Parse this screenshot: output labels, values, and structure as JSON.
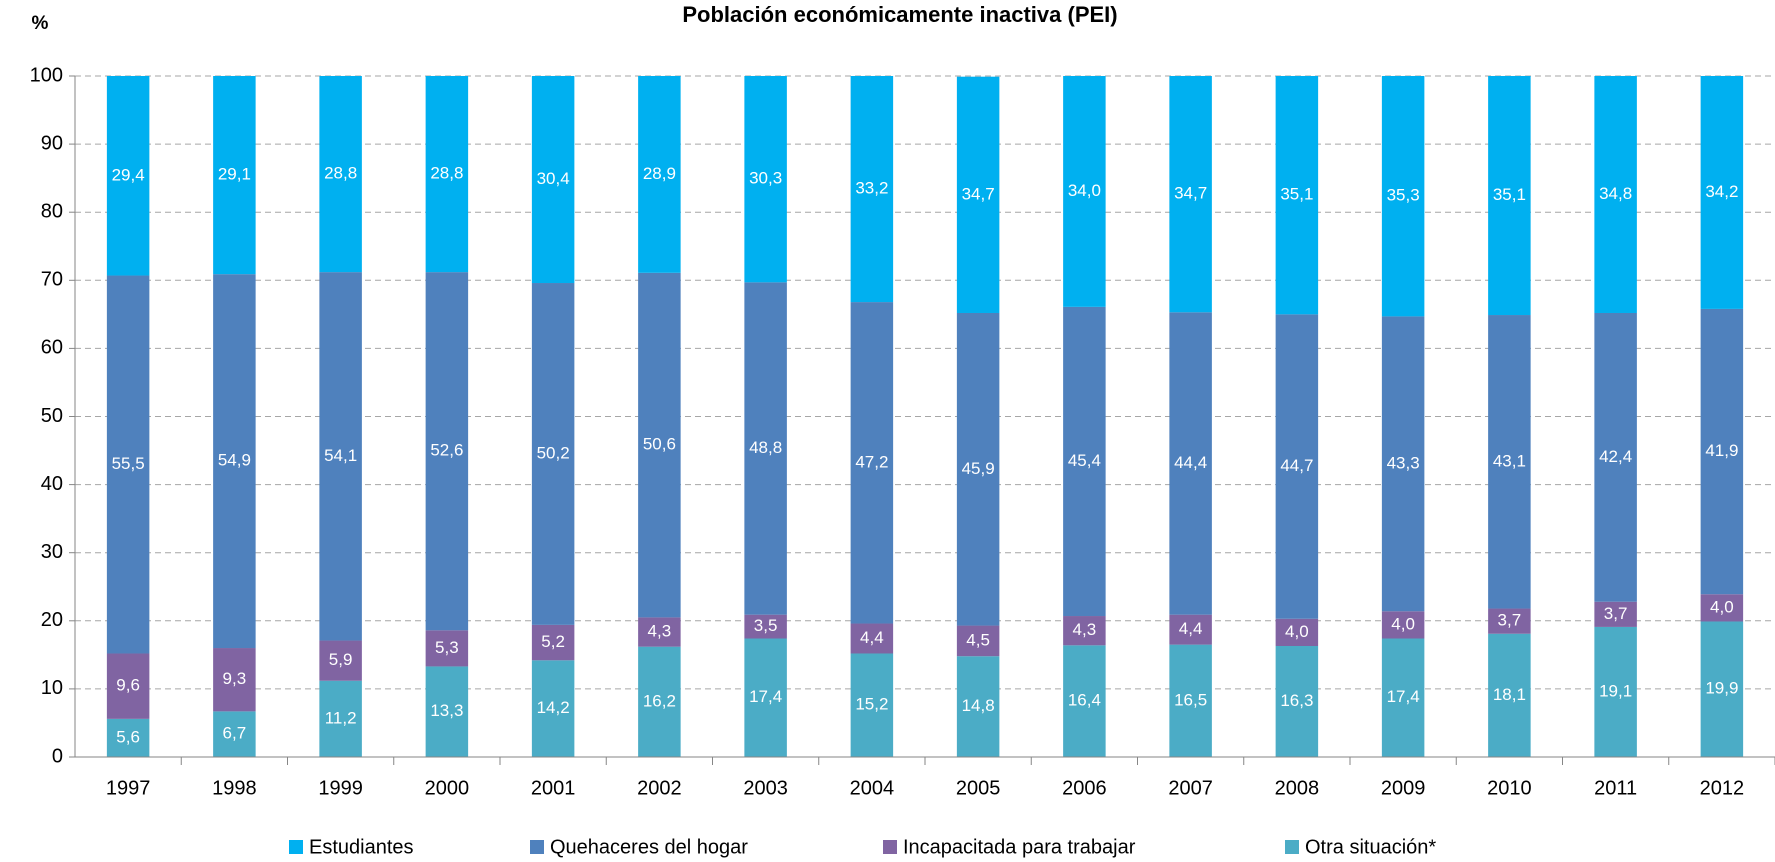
{
  "chart_data": {
    "type": "stacked_bar",
    "title": "Población económicamente inactiva (PEI)",
    "y_label": "%",
    "categories": [
      "1997",
      "1998",
      "1999",
      "2000",
      "2001",
      "2002",
      "2003",
      "2004",
      "2005",
      "2006",
      "2007",
      "2008",
      "2009",
      "2010",
      "2011",
      "2012"
    ],
    "series": [
      {
        "name": "Estudiantes",
        "color": "#00b0f0",
        "values": [
          29.4,
          29.1,
          28.8,
          28.8,
          30.4,
          28.9,
          30.3,
          33.2,
          34.7,
          34.0,
          34.7,
          35.1,
          35.3,
          35.1,
          34.8,
          34.2
        ],
        "value_labels": [
          "29,4",
          "29,1",
          "28,8",
          "28,8",
          "30,4",
          "28,9",
          "30,3",
          "33,2",
          "34,7",
          "34,0",
          "34,7",
          "35,1",
          "35,3",
          "35,1",
          "34,8",
          "34,2"
        ]
      },
      {
        "name": "Quehaceres del hogar",
        "color": "#4f81bd",
        "values": [
          55.5,
          54.9,
          54.1,
          52.6,
          50.2,
          50.6,
          48.8,
          47.2,
          45.9,
          45.4,
          44.4,
          44.7,
          43.3,
          43.1,
          42.4,
          41.9
        ],
        "value_labels": [
          "55,5",
          "54,9",
          "54,1",
          "52,6",
          "50,2",
          "50,6",
          "48,8",
          "47,2",
          "45,9",
          "45,4",
          "44,4",
          "44,7",
          "43,3",
          "43,1",
          "42,4",
          "41,9"
        ]
      },
      {
        "name": "Incapacitada para trabajar",
        "color": "#8064a2",
        "values": [
          9.6,
          9.3,
          5.9,
          5.3,
          5.2,
          4.3,
          3.5,
          4.4,
          4.5,
          4.3,
          4.4,
          4.0,
          4.0,
          3.7,
          3.7,
          4.0
        ],
        "value_labels": [
          "9,6",
          "9,3",
          "5,9",
          "5,3",
          "5,2",
          "4,3",
          "3,5",
          "4,4",
          "4,5",
          "4,3",
          "4,4",
          "4,0",
          "4,0",
          "3,7",
          "3,7",
          "4,0"
        ]
      },
      {
        "name": "Otra situación*",
        "color": "#4bacc6",
        "values": [
          5.6,
          6.7,
          11.2,
          13.3,
          14.2,
          16.2,
          17.4,
          15.2,
          14.8,
          16.4,
          16.5,
          16.3,
          17.4,
          18.1,
          19.1,
          19.9
        ],
        "value_labels": [
          "5,6",
          "6,7",
          "11,2",
          "13,3",
          "14,2",
          "16,2",
          "17,4",
          "15,2",
          "14,8",
          "16,4",
          "16,5",
          "16,3",
          "17,4",
          "18,1",
          "19,1",
          "19,9"
        ]
      }
    ],
    "ylim": [
      0,
      100
    ],
    "yticks": [
      0,
      10,
      20,
      30,
      40,
      50,
      60,
      70,
      80,
      90,
      100
    ],
    "grid": true
  }
}
